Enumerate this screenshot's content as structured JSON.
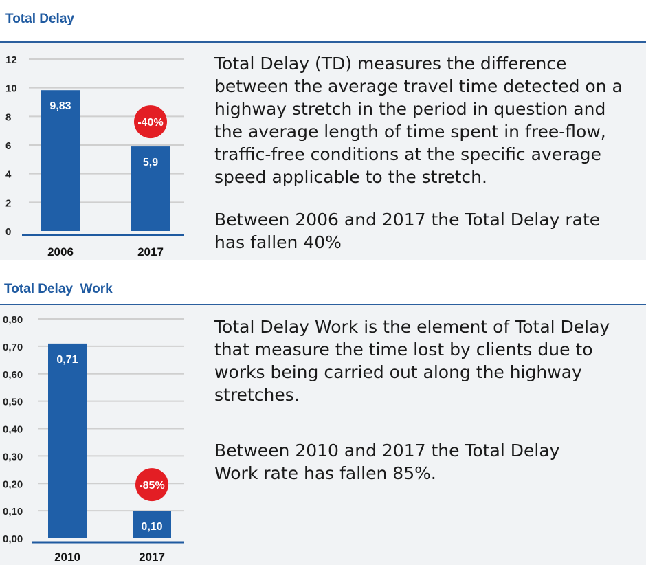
{
  "sections": [
    {
      "title": "Total Delay",
      "paragraph1": "Total Delay (TD) measures the difference between the average travel time detected on a highway stretch in the period in question and the average length of time spent in free-flow, traffic-free conditions at the specific average speed applicable to the stretch.",
      "paragraph2": "Between 2006 and 2017 the Total Delay rate has fallen 40%"
    },
    {
      "title": "Total Delay  Work",
      "paragraph1": "Total Delay Work is the element of Total Delay that measure the time lost by clients due to works being carried out along the highway stretches.",
      "paragraph2": "Between 2010 and 2017 the Total Delay Work rate has fallen 85%."
    }
  ],
  "colors": {
    "bar": "#1f5fa8",
    "badge": "#e31e24",
    "title": "#1f5aa0",
    "grid": "#cfcfcf",
    "axis": "#1f5aa0"
  },
  "chart_data": [
    {
      "type": "bar",
      "title": "Total Delay",
      "categories": [
        "2006",
        "2017"
      ],
      "values": [
        9.83,
        5.9
      ],
      "value_labels": [
        "9,83",
        "5,9"
      ],
      "yticks": [
        "0",
        "2",
        "4",
        "6",
        "8",
        "10",
        "12"
      ],
      "ylim": [
        0,
        12
      ],
      "grid": true,
      "annotation": "-40%"
    },
    {
      "type": "bar",
      "title": "Total Delay  Work",
      "categories": [
        "2010",
        "2017"
      ],
      "values": [
        0.71,
        0.1
      ],
      "value_labels": [
        "0,71",
        "0,10"
      ],
      "yticks": [
        "0,00",
        "0,10",
        "0,20",
        "0,30",
        "0,40",
        "0,50",
        "0,60",
        "0,70",
        "0,80"
      ],
      "ylim": [
        0,
        0.8
      ],
      "grid": true,
      "annotation": "-85%"
    }
  ]
}
